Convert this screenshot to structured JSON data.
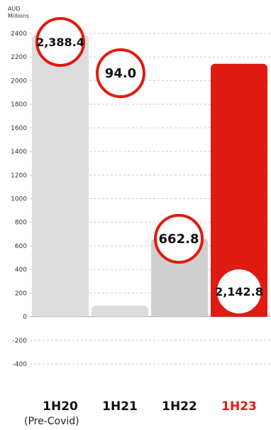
{
  "chart_data": {
    "type": "bar",
    "unit_lines": [
      "AUD",
      "Millions"
    ],
    "categories": [
      "1H20",
      "1H21",
      "1H22",
      "1H23"
    ],
    "category_subtitles": [
      "(Pre-Covid)",
      "",
      "",
      ""
    ],
    "values": [
      2388.4,
      94.0,
      662.8,
      2142.8
    ],
    "value_labels": [
      "2,388.4",
      "94.0",
      "662.8",
      "2,142.8"
    ],
    "bar_colors": [
      "#dcdcdc",
      "#dcdcdc",
      "#cfcfcf",
      "#e01b0f"
    ],
    "category_label_colors": [
      "#111111",
      "#111111",
      "#111111",
      "#e01b0f"
    ],
    "label_circle_color": "#e01b0f",
    "y_ticks": [
      "2400",
      "2200",
      "2000",
      "1800",
      "1600",
      "1400",
      "1200",
      "1000",
      "800",
      "600",
      "400",
      "200",
      "0",
      "-200",
      "-400"
    ],
    "ylim": [
      -400,
      2400
    ],
    "grid": true
  }
}
